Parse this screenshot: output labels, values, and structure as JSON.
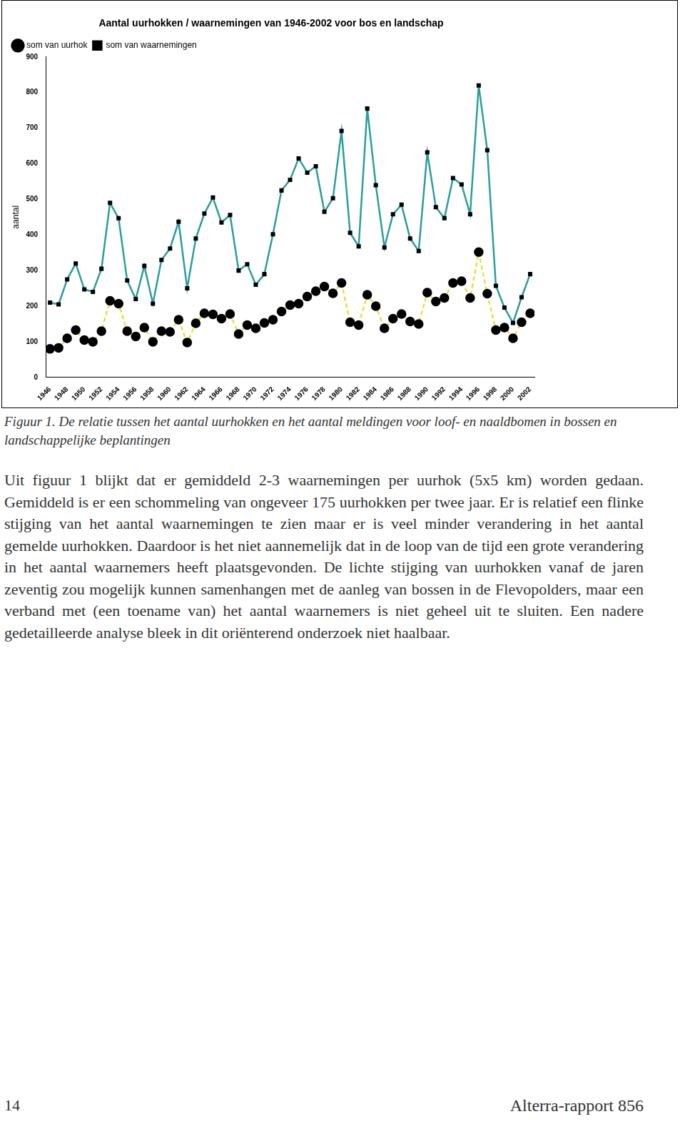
{
  "chart_data": {
    "type": "line",
    "title": "Aantal uurhokken / waarnemingen van 1946-2002 voor bos en landschap",
    "y_label": "aantal",
    "categories": [
      "1946",
      null,
      "1948",
      null,
      "1950",
      null,
      "1952",
      null,
      "1954",
      null,
      "1956",
      null,
      "1958",
      null,
      "1960",
      null,
      "1962",
      null,
      "1964",
      null,
      "1966",
      null,
      "1968",
      null,
      "1970",
      null,
      "1972",
      null,
      "1974",
      null,
      "1976",
      null,
      "1978",
      null,
      "1980",
      null,
      "1982",
      null,
      "1984",
      null,
      "1986",
      null,
      "1988",
      null,
      "1990",
      null,
      "1992",
      null,
      "1994",
      null,
      "1996",
      null,
      "1998",
      null,
      "2000",
      null,
      "2002"
    ],
    "series": [
      {
        "name": "som van uurhok",
        "color": "#e8e040",
        "marker": "circle",
        "line_style": "dashed",
        "values": [
          80,
          83,
          110,
          133,
          105,
          100,
          130,
          215,
          207,
          130,
          115,
          140,
          100,
          130,
          128,
          162,
          98,
          152,
          180,
          177,
          165,
          178,
          122,
          147,
          138,
          153,
          162,
          185,
          203,
          207,
          227,
          242,
          255,
          236,
          265,
          155,
          147,
          232,
          200,
          138,
          165,
          178,
          157,
          150,
          238,
          213,
          223,
          265,
          270,
          223,
          352,
          235,
          133,
          140,
          110,
          155,
          180
        ]
      },
      {
        "name": "som van waarnemingen",
        "color": "#2a9d9d",
        "marker": "square",
        "line_style": "solid",
        "values": [
          210,
          205,
          275,
          320,
          247,
          240,
          305,
          490,
          447,
          272,
          220,
          313,
          207,
          330,
          362,
          437,
          250,
          390,
          460,
          505,
          435,
          456,
          300,
          318,
          260,
          290,
          402,
          525,
          555,
          615,
          575,
          593,
          465,
          503,
          692,
          406,
          368,
          755,
          540,
          365,
          458,
          485,
          390,
          355,
          632,
          478,
          447,
          560,
          542,
          458,
          820,
          638,
          257,
          196,
          153,
          225,
          290
        ]
      }
    ],
    "ylim": [
      0,
      900
    ],
    "yticks": [
      0,
      100,
      200,
      300,
      400,
      500,
      600,
      700,
      800,
      900
    ],
    "grid": false,
    "legend": "upper left"
  },
  "caption": "Figuur 1. De relatie tussen het aantal uurhokken en het aantal meldingen voor loof- en naaldbomen in bossen en landschappelijke beplantingen",
  "paragraph": "Uit figuur 1 blijkt dat er gemiddeld 2-3 waarnemingen per uurhok (5x5 km) worden gedaan. Gemiddeld is er een schommeling van ongeveer 175 uurhokken per twee jaar. Er is relatief een flinke stijging van het aantal waarnemingen te zien maar er is veel minder verandering in het aantal gemelde uurhokken. Daardoor is het niet aannemelijk dat in de loop van de tijd een grote verandering in het aantal waarnemers heeft plaatsgevonden. De lichte stijging van uurhokken vanaf de jaren zeventig zou mogelijk kunnen samenhangen met de aanleg van bossen in de Flevopolders, maar een verband met (een toename van) het aantal waarnemers is niet geheel uit te sluiten. Een nadere gedetailleerde analyse bleek in dit oriënterend onderzoek niet haalbaar.",
  "footer": {
    "page": "14",
    "report": "Alterra-rapport 856"
  }
}
